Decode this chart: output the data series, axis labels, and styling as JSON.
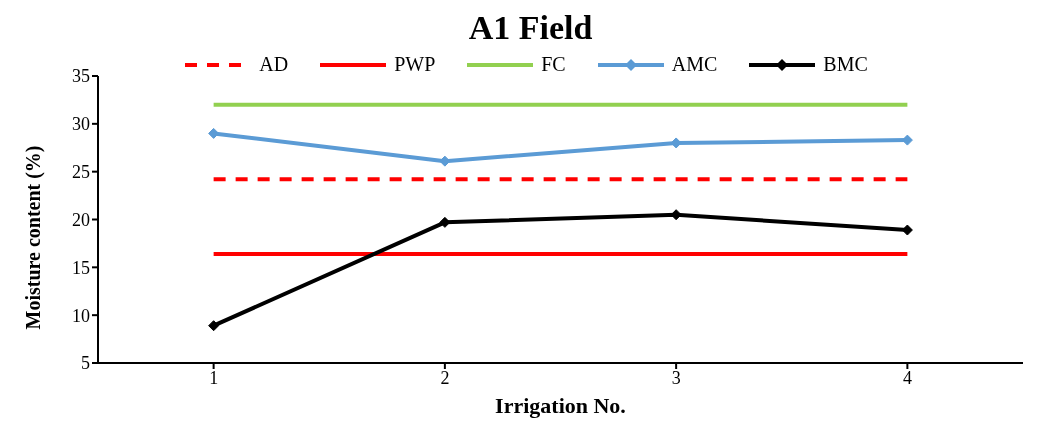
{
  "chart_data": {
    "type": "line",
    "title": "A1 Field",
    "xlabel": "Irrigation No.",
    "ylabel": "Moisture content (%)",
    "x": [
      1,
      2,
      3,
      4
    ],
    "xlim": [
      0.5,
      4.5
    ],
    "xticks": [
      1,
      2,
      3,
      4
    ],
    "ylim": [
      5,
      35
    ],
    "yticks": [
      5,
      10,
      15,
      20,
      25,
      30,
      35
    ],
    "grid": false,
    "legend": "top",
    "series": [
      {
        "name": "AD",
        "color": "#ff0000",
        "values": [
          24.2,
          24.2,
          24.2,
          24.2
        ],
        "line_style": "dashed",
        "marker": "none"
      },
      {
        "name": "PWP",
        "color": "#ff0000",
        "values": [
          16.4,
          16.4,
          16.4,
          16.4
        ],
        "line_style": "solid",
        "marker": "none"
      },
      {
        "name": "FC",
        "color": "#92d050",
        "values": [
          32,
          32,
          32,
          32
        ],
        "line_style": "solid",
        "marker": "none"
      },
      {
        "name": "AMC",
        "color": "#5b9bd5",
        "values": [
          29,
          26.1,
          28,
          28.3
        ],
        "line_style": "solid",
        "marker": "diamond"
      },
      {
        "name": "BMC",
        "color": "#000000",
        "values": [
          8.9,
          19.7,
          20.5,
          18.9
        ],
        "line_style": "solid",
        "marker": "diamond"
      }
    ]
  }
}
